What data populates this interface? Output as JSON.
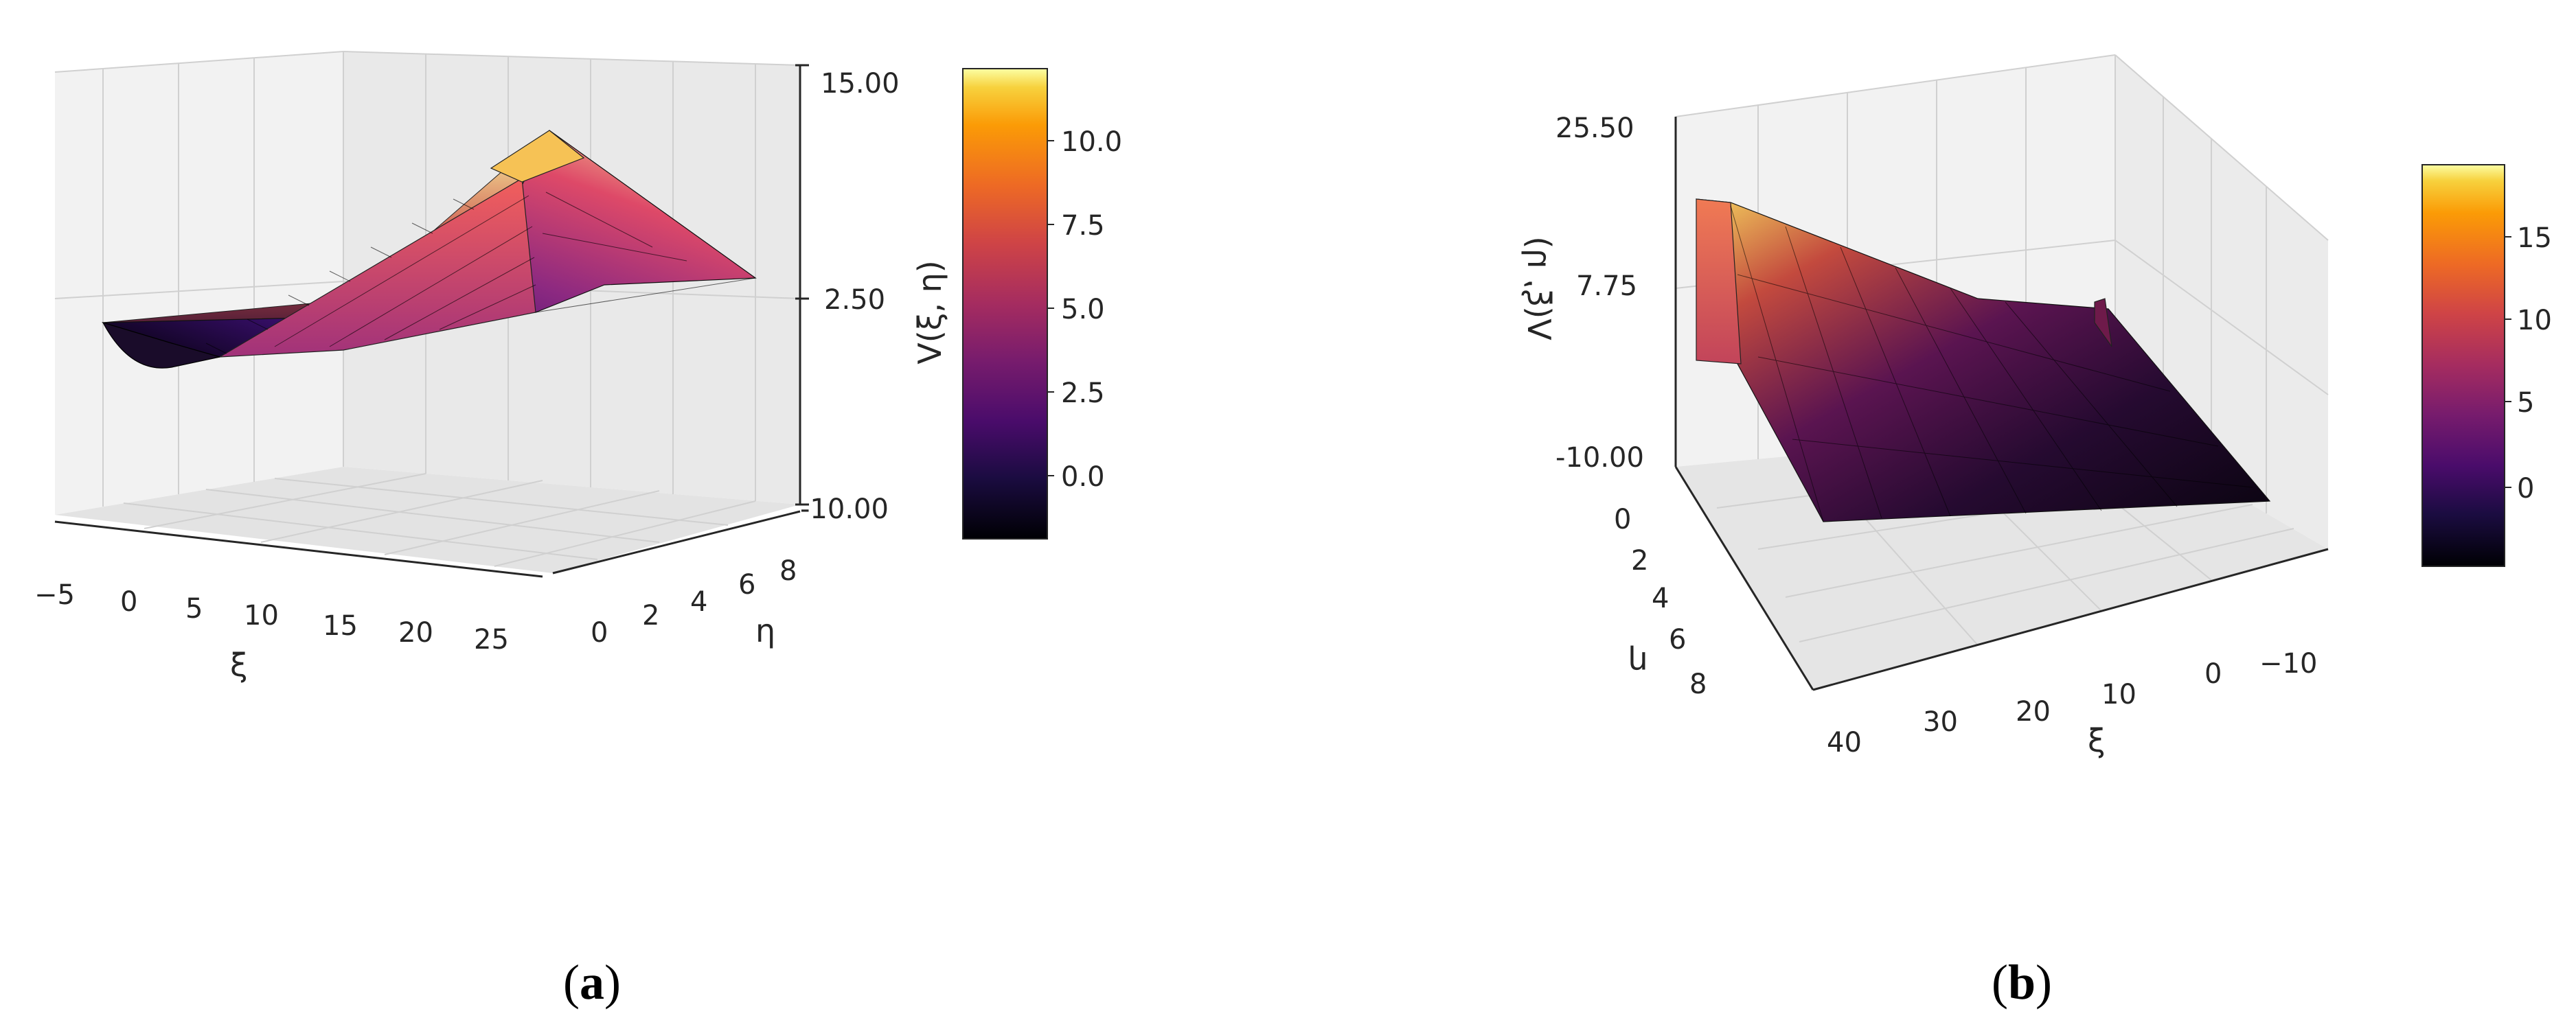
{
  "chart_data": [
    {
      "type": "surface3d",
      "panel_label": "a",
      "xlabel": "ξ",
      "ylabel": "η",
      "zlabel": "V(ξ, η)",
      "x_ticks": [
        "−5",
        "0",
        "5",
        "10",
        "15",
        "20",
        "25"
      ],
      "y_ticks": [
        "0",
        "2",
        "4",
        "6",
        "8"
      ],
      "z_ticks": [
        "15.00",
        "2.50",
        "-10.00"
      ],
      "xlim": [
        -7,
        27
      ],
      "ylim": [
        0,
        9
      ],
      "zlim": [
        -10,
        15
      ],
      "colormap": "inferno",
      "colorbar_ticks": [
        "10.0",
        "7.5",
        "5.0",
        "2.5",
        "0.0"
      ],
      "colorbar_range": [
        -1.8,
        12.2
      ],
      "colors": {
        "cmap_low": "#000004",
        "cmap_mid": "#bc3754",
        "cmap_high": "#fcffa4"
      },
      "surface_profile": {
        "xi": [
          -6,
          -4,
          -2,
          0,
          2,
          4,
          6,
          8,
          10,
          12,
          14,
          16,
          18,
          20,
          22,
          24,
          26
        ],
        "V_eta0": [
          -1.0,
          -1.6,
          -1.4,
          -0.6,
          0.4,
          1.3,
          2.2,
          3.1,
          4.1,
          5.0,
          6.0,
          7.0,
          8.0,
          9.1,
          10.0,
          11.0,
          12.0
        ],
        "V_eta9": [
          0.0,
          0.0,
          0.1,
          0.2,
          0.3,
          0.4,
          0.5,
          0.6,
          0.8,
          1.0,
          1.2,
          1.4,
          1.6,
          1.8,
          2.0,
          2.2,
          2.4
        ]
      },
      "grid": true
    },
    {
      "type": "surface3d",
      "panel_label": "b",
      "xlabel": "ξ",
      "ylabel": "η",
      "zlabel": "V(ξ, η)",
      "x_ticks": [
        "40",
        "30",
        "20",
        "10",
        "0",
        "−10"
      ],
      "y_ticks": [
        "0",
        "2",
        "4",
        "6",
        "8"
      ],
      "z_ticks": [
        "25.50",
        "7.75",
        "-10.00"
      ],
      "xlim": [
        -14,
        44
      ],
      "ylim": [
        0,
        9
      ],
      "zlim": [
        -10,
        25.5
      ],
      "colormap": "inferno",
      "colorbar_ticks": [
        "15",
        "10",
        "5",
        "0"
      ],
      "colorbar_range": [
        -4.5,
        19.5
      ],
      "colors": {
        "cmap_low": "#000004",
        "cmap_mid": "#bc3754",
        "cmap_high": "#fcffa4"
      },
      "surface_profile": {
        "xi": [
          40,
          35,
          30,
          25,
          20,
          15,
          10,
          5,
          0,
          -5,
          -10
        ],
        "V_eta0": [
          19.0,
          16.0,
          13.0,
          10.5,
          8.0,
          6.0,
          4.0,
          2.5,
          1.0,
          0.0,
          -1.0
        ],
        "V_eta9": [
          -2.0,
          -2.5,
          -2.8,
          -3.0,
          -3.2,
          -3.4,
          -3.5,
          -3.6,
          -3.8,
          -4.0,
          -4.2
        ]
      },
      "grid": true
    }
  ]
}
